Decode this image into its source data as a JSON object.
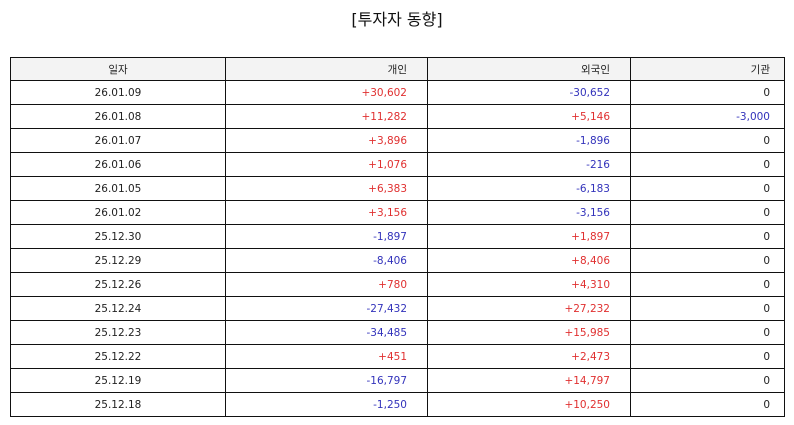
{
  "title": "[투자자 동향]",
  "table": {
    "headers": [
      "일자",
      "개인",
      "외국인",
      "기관"
    ],
    "rows": [
      [
        "26.01.09",
        "+30,602",
        "-30,652",
        "0"
      ],
      [
        "26.01.08",
        "+11,282",
        "+5,146",
        "-3,000"
      ],
      [
        "26.01.07",
        "+3,896",
        "-1,896",
        "0"
      ],
      [
        "26.01.06",
        "+1,076",
        "-216",
        "0"
      ],
      [
        "26.01.05",
        "+6,383",
        "-6,183",
        "0"
      ],
      [
        "26.01.02",
        "+3,156",
        "-3,156",
        "0"
      ],
      [
        "25.12.30",
        "-1,897",
        "+1,897",
        "0"
      ],
      [
        "25.12.29",
        "-8,406",
        "+8,406",
        "0"
      ],
      [
        "25.12.26",
        "+780",
        "+4,310",
        "0"
      ],
      [
        "25.12.24",
        "-27,432",
        "+27,232",
        "0"
      ],
      [
        "25.12.23",
        "-34,485",
        "+15,985",
        "0"
      ],
      [
        "25.12.22",
        "+451",
        "+2,473",
        "0"
      ],
      [
        "25.12.19",
        "-16,797",
        "+14,797",
        "0"
      ],
      [
        "25.12.18",
        "-1,250",
        "+10,250",
        "0"
      ]
    ]
  },
  "colors": {
    "positive": "#e03030",
    "negative": "#3333bb",
    "header_bg": "#f3f3f3"
  }
}
